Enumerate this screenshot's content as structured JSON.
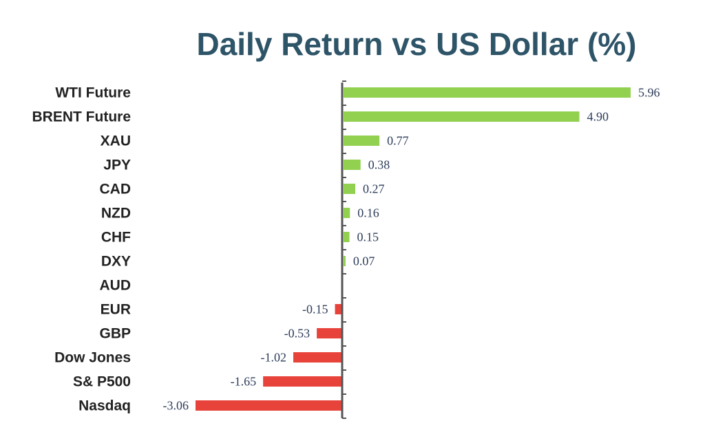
{
  "colors": {
    "title": "#2e5468",
    "category_text": "#222222",
    "value_text": "#2d3c5a",
    "positive": "#92d050",
    "negative": "#e8433a",
    "axis": "#555555"
  },
  "chart_data": {
    "type": "bar",
    "orientation": "horizontal",
    "title": "Daily Return vs US Dollar (%)",
    "xlabel": "",
    "ylabel": "",
    "grid": false,
    "legend": "none",
    "xlim": [
      -3.06,
      5.96
    ],
    "categories": [
      "WTI Future",
      "BRENT Future",
      "XAU",
      "JPY",
      "CAD",
      "NZD",
      "CHF",
      "DXY",
      "AUD",
      "EUR",
      "GBP",
      "Dow Jones",
      "S& P500",
      "Nasdaq"
    ],
    "values": [
      5.96,
      4.9,
      0.77,
      0.38,
      0.27,
      0.16,
      0.15,
      0.07,
      0.0,
      -0.15,
      -0.53,
      -1.02,
      -1.65,
      -3.06
    ],
    "labels": [
      "5.96",
      "4.90",
      "0.77",
      "0.38",
      "0.27",
      "0.16",
      "0.15",
      "0.07",
      "",
      "-0.15",
      "-0.53",
      "-1.02",
      "-1.65",
      "-3.06"
    ]
  }
}
